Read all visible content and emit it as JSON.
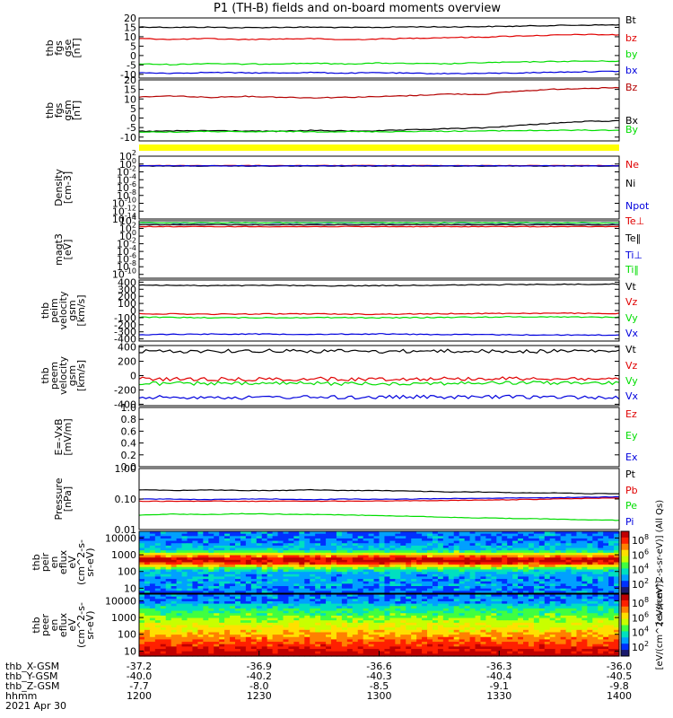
{
  "title": "P1 (TH-B) fields and on-board moments overview",
  "colors": {
    "black": "#000000",
    "red": "#e00000",
    "green": "#00dd00",
    "blue": "#0000dd",
    "darkred": "#b40000",
    "yellow": "#ffff00"
  },
  "chart_data": [
    {
      "id": "fgs_gse",
      "type": "line",
      "ylabel": [
        "thb",
        "fgs",
        "gse",
        "[nT]"
      ],
      "yticks": [
        "20",
        "15",
        "10",
        "5",
        "0",
        "-5",
        "-10"
      ],
      "ylim": [
        -12,
        20
      ],
      "series": [
        {
          "name": "Bt",
          "color": "black",
          "values": [
            15.2,
            15.0,
            15.1,
            14.8,
            15.0,
            15.1,
            14.9,
            15.0,
            15.3,
            15.2,
            15.4,
            15.6,
            16.0,
            16.2,
            16.3
          ]
        },
        {
          "name": "bz",
          "color": "red",
          "values": [
            9.0,
            8.6,
            9.0,
            8.5,
            8.8,
            9.0,
            8.4,
            8.8,
            9.2,
            9.6,
            9.8,
            10.4,
            10.8,
            11.2,
            11.0
          ]
        },
        {
          "name": "by",
          "color": "green",
          "values": [
            -4.5,
            -4.8,
            -4.2,
            -4.6,
            -4.4,
            -4.1,
            -4.5,
            -4.0,
            -4.3,
            -4.4,
            -3.8,
            -3.5,
            -3.2,
            -3.0,
            -3.0
          ]
        },
        {
          "name": "bx",
          "color": "blue",
          "values": [
            -9.2,
            -9.4,
            -9.0,
            -9.2,
            -9.3,
            -9.0,
            -9.4,
            -9.1,
            -9.5,
            -9.6,
            -9.5,
            -9.3,
            -8.9,
            -8.6,
            -8.4
          ]
        }
      ]
    },
    {
      "id": "fgs_gsm",
      "type": "line",
      "ylabel": [
        "thb",
        "fgs",
        "gsm",
        "[nT]"
      ],
      "yticks": [
        "20",
        "15",
        "10",
        "5",
        "0",
        "-5",
        "-10"
      ],
      "ylim": [
        -12,
        20
      ],
      "series": [
        {
          "name": "Bz",
          "color": "darkred",
          "values": [
            11.0,
            11.6,
            10.8,
            11.4,
            11.0,
            10.6,
            10.9,
            11.2,
            11.8,
            12.6,
            12.4,
            14.0,
            15.0,
            15.6,
            15.8
          ]
        },
        {
          "name": "Bx",
          "color": "black",
          "values": [
            -7.0,
            -6.8,
            -6.6,
            -6.8,
            -7.0,
            -6.5,
            -6.8,
            -6.7,
            -6.2,
            -5.6,
            -5.2,
            -4.0,
            -2.8,
            -1.8,
            -1.5
          ]
        },
        {
          "name": "By",
          "color": "green",
          "values": [
            -7.2,
            -7.4,
            -7.0,
            -7.3,
            -7.0,
            -7.2,
            -7.1,
            -7.2,
            -7.0,
            -6.9,
            -6.8,
            -6.6,
            -6.5,
            -6.4,
            -6.4
          ]
        }
      ]
    },
    {
      "id": "density",
      "type": "line",
      "yscale": "log",
      "ylabel": [
        "Density",
        "[cm-3]"
      ],
      "yticks": [
        "10^2",
        "10^0",
        "10^-2",
        "10^-4",
        "10^-6",
        "10^-8",
        "10^-10",
        "10^-12",
        "10^-14"
      ],
      "ylim": [
        -14,
        2
      ],
      "series": [
        {
          "name": "Ne",
          "color": "red",
          "values": [
            0.4,
            0.4,
            0.4,
            0.4,
            0.4,
            0.4,
            0.4,
            0.4,
            0.4,
            0.4,
            0.4,
            0.4,
            0.4,
            0.4,
            0.4
          ]
        },
        {
          "name": "Ni",
          "color": "black",
          "values": [
            0.3,
            0.3,
            0.3,
            0.3,
            0.3,
            0.3,
            0.3,
            0.3,
            0.3,
            0.3,
            0.3,
            0.3,
            0.3,
            0.3,
            0.3
          ]
        },
        {
          "name": "Npot",
          "color": "blue",
          "values": [
            0.35,
            0.35,
            0.35,
            0.35,
            0.35,
            0.35,
            0.35,
            0.35,
            0.35,
            0.35,
            0.35,
            0.35,
            0.35,
            0.35,
            0.35
          ]
        }
      ]
    },
    {
      "id": "temperature",
      "type": "line",
      "yscale": "log",
      "ylabel": [
        "magt3",
        "[eV]"
      ],
      "yticks": [
        "10^4",
        "10^2",
        "10^0",
        "10^-2",
        "10^-4",
        "10^-6",
        "10^-8",
        "10^-10"
      ],
      "ylim": [
        -11,
        4
      ],
      "series": [
        {
          "name": "Te⊥",
          "color": "red",
          "values": [
            300,
            300,
            300,
            300,
            300,
            300,
            300,
            300,
            300,
            300,
            300,
            300,
            300,
            300,
            300
          ]
        },
        {
          "name": "Te‖",
          "color": "black",
          "values": [
            900,
            900,
            900,
            900,
            900,
            900,
            900,
            900,
            900,
            900,
            900,
            900,
            900,
            900,
            900
          ]
        },
        {
          "name": "Ti⊥",
          "color": "blue",
          "values": [
            2500,
            2500,
            2500,
            2500,
            2500,
            2500,
            2500,
            2500,
            2500,
            2500,
            2500,
            2500,
            2500,
            2500,
            2500
          ]
        },
        {
          "name": "Ti‖",
          "color": "green",
          "values": [
            3000,
            3000,
            3000,
            3000,
            3000,
            3000,
            3000,
            3000,
            3000,
            3000,
            3000,
            3000,
            3000,
            3000,
            3000
          ]
        }
      ]
    },
    {
      "id": "peim_velocity",
      "type": "line",
      "ylabel": [
        "thb",
        "peim",
        "velocity",
        "gsm",
        "[km/s]"
      ],
      "yticks": [
        "400",
        "300",
        "200",
        "100",
        "0",
        "-100",
        "-200",
        "-300",
        "-400"
      ],
      "ylim": [
        -430,
        430
      ],
      "series": [
        {
          "name": "Vt",
          "color": "black",
          "values": [
            360,
            355,
            350,
            352,
            355,
            350,
            348,
            352,
            356,
            358,
            362,
            365,
            368,
            370,
            372
          ]
        },
        {
          "name": "Vz",
          "color": "red",
          "values": [
            -45,
            -48,
            -52,
            -50,
            -48,
            -46,
            -50,
            -52,
            -48,
            -45,
            -42,
            -40,
            -38,
            -40,
            -42
          ]
        },
        {
          "name": "Vy",
          "color": "green",
          "values": [
            -95,
            -98,
            -100,
            -102,
            -100,
            -98,
            -100,
            -102,
            -100,
            -96,
            -92,
            -90,
            -88,
            -92,
            -95
          ]
        },
        {
          "name": "Vx",
          "color": "blue",
          "values": [
            -340,
            -335,
            -332,
            -330,
            -332,
            -335,
            -332,
            -330,
            -335,
            -338,
            -340,
            -342,
            -344,
            -345,
            -346
          ]
        }
      ]
    },
    {
      "id": "peem_velocity",
      "type": "line",
      "ylabel": [
        "thb",
        "peem",
        "velocity",
        "gsm",
        "[km/s]"
      ],
      "yticks": [
        "400",
        "200",
        "0",
        "-200",
        "-400"
      ],
      "ylim": [
        -420,
        420
      ],
      "series": [
        {
          "name": "Vt",
          "color": "black",
          "values": [
            340,
            338,
            345,
            342,
            350,
            340,
            345,
            338,
            342,
            345,
            340,
            338,
            342,
            345,
            340
          ]
        },
        {
          "name": "Vz",
          "color": "red",
          "values": [
            -45,
            -50,
            -48,
            -52,
            -50,
            -46,
            -50,
            -48,
            -45,
            -42,
            -44,
            -40,
            -42,
            -45,
            -48
          ]
        },
        {
          "name": "Vy",
          "color": "green",
          "values": [
            -110,
            -112,
            -108,
            -115,
            -110,
            -108,
            -112,
            -110,
            -108,
            -106,
            -104,
            -102,
            -100,
            -104,
            -108
          ]
        },
        {
          "name": "Vx",
          "color": "blue",
          "values": [
            -300,
            -305,
            -298,
            -310,
            -302,
            -300,
            -305,
            -300,
            -298,
            -302,
            -300,
            -298,
            -300,
            -302,
            -305
          ]
        }
      ]
    },
    {
      "id": "efield",
      "type": "line",
      "ylabel": [
        "E=-VxB",
        "[mV/m]"
      ],
      "yticks": [
        "1.0",
        "0.8",
        "0.6",
        "0.4",
        "0.2",
        "0.0"
      ],
      "ylim": [
        0,
        1
      ],
      "series": [
        {
          "name": "Ez",
          "color": "red",
          "values": []
        },
        {
          "name": "Ey",
          "color": "green",
          "values": []
        },
        {
          "name": "Ex",
          "color": "blue",
          "values": []
        }
      ]
    },
    {
      "id": "pressure",
      "type": "line",
      "yscale": "log",
      "ylabel": [
        "Pressure",
        "[nPa]"
      ],
      "yticks": [
        "1.00",
        "0.10",
        "0.01"
      ],
      "ylim": [
        -2,
        0
      ],
      "series": [
        {
          "name": "Pt",
          "color": "black",
          "values": [
            0.2,
            0.19,
            0.2,
            0.19,
            0.19,
            0.2,
            0.19,
            0.19,
            0.18,
            0.17,
            0.17,
            0.16,
            0.16,
            0.15,
            0.15
          ]
        },
        {
          "name": "Pb",
          "color": "red",
          "values": [
            0.085,
            0.084,
            0.086,
            0.084,
            0.085,
            0.086,
            0.085,
            0.086,
            0.088,
            0.09,
            0.092,
            0.095,
            0.1,
            0.105,
            0.108
          ]
        },
        {
          "name": "Pe",
          "color": "green",
          "values": [
            0.03,
            0.032,
            0.031,
            0.033,
            0.032,
            0.031,
            0.03,
            0.029,
            0.027,
            0.025,
            0.024,
            0.023,
            0.022,
            0.021,
            0.02
          ]
        },
        {
          "name": "Pi",
          "color": "blue",
          "values": [
            0.1,
            0.1,
            0.095,
            0.1,
            0.1,
            0.095,
            0.1,
            0.098,
            0.1,
            0.104,
            0.106,
            0.108,
            0.11,
            0.115,
            0.118
          ]
        }
      ]
    },
    {
      "id": "peir_spec",
      "type": "heatmap",
      "ylabel": [
        "thb",
        "peir",
        "en",
        "eflux",
        "eV",
        "(cm^2-s-",
        "sr-eV)"
      ],
      "yticks": [
        "10000",
        "1000",
        "100",
        "10"
      ],
      "ylim": [
        5,
        25000
      ],
      "colorbar_ticks": [
        "10^8",
        "10^6",
        "10^4",
        "10^2"
      ],
      "colorbar_label": "[eV/(cm^2-s-sr-eV)] (All Qs)"
    },
    {
      "id": "peer_spec",
      "type": "heatmap",
      "ylabel": [
        "thb",
        "peer",
        "en",
        "eflux",
        "eV",
        "(cm^2-s-",
        "sr-eV)"
      ],
      "yticks": [
        "10000",
        "1000",
        "100",
        "10"
      ],
      "ylim": [
        5,
        25000
      ],
      "colorbar_ticks": [
        "10^8",
        "10^6",
        "10^4",
        "10^2"
      ],
      "colorbar_label": "[eV/(cm^2-s-sr-eV)]"
    }
  ],
  "ephemeris": {
    "rows": [
      {
        "label": "thb_X-GSM",
        "values": [
          "-37.2",
          "-36.9",
          "-36.6",
          "-36.3",
          "-36.0"
        ]
      },
      {
        "label": "thb_Y-GSM",
        "values": [
          "-40.0",
          "-40.2",
          "-40.3",
          "-40.4",
          "-40.5"
        ]
      },
      {
        "label": "thb_Z-GSM",
        "values": [
          "-7.7",
          "-8.0",
          "-8.5",
          "-9.1",
          "-9.8"
        ]
      },
      {
        "label": "hhmm",
        "values": [
          "1200",
          "1230",
          "1300",
          "1330",
          "1400"
        ]
      }
    ],
    "date": "2021 Apr 30"
  }
}
